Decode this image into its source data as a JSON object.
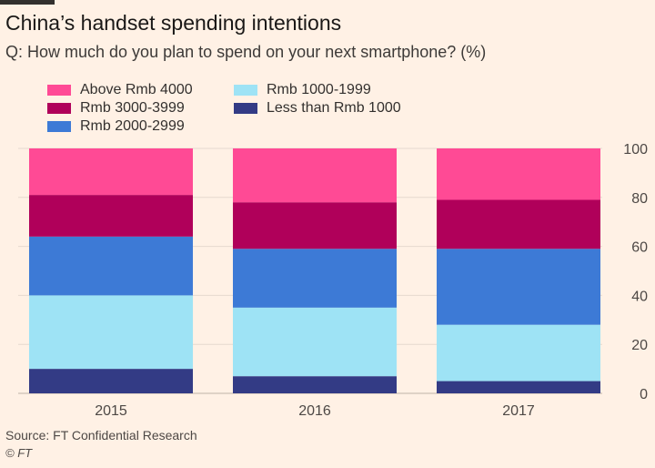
{
  "title": "China’s handset spending intentions",
  "subtitle": "Q: How much do you plan to spend on your next smartphone? (%)",
  "source": "Source: FT Confidential Research",
  "copyright": "© FT",
  "colors": {
    "background": "#fff1e5",
    "grid": "#e6d9ce"
  },
  "chart_data": {
    "type": "bar",
    "stacked": true,
    "categories": [
      "2015",
      "2016",
      "2017"
    ],
    "ylim": [
      0,
      100
    ],
    "yticks": [
      0,
      20,
      40,
      60,
      80,
      100
    ],
    "grid": true,
    "legend_position": "top-left",
    "series": [
      {
        "name": "Less than Rmb 1000",
        "color": "#333b85",
        "values": [
          10,
          7,
          5
        ]
      },
      {
        "name": "Rmb 1000-1999",
        "color": "#9ee3f5",
        "values": [
          30,
          28,
          23
        ]
      },
      {
        "name": "Rmb 2000-2999",
        "color": "#3d7ad6",
        "values": [
          24,
          24,
          31
        ]
      },
      {
        "name": "Rmb 3000-3999",
        "color": "#b0005a",
        "values": [
          17,
          19,
          20
        ]
      },
      {
        "name": "Above Rmb 4000",
        "color": "#ff4a95",
        "values": [
          19,
          22,
          21
        ]
      }
    ],
    "legend_order": [
      "Above Rmb 4000",
      "Rmb 3000-3999",
      "Rmb 2000-2999",
      "Rmb 1000-1999",
      "Less than Rmb 1000"
    ]
  }
}
